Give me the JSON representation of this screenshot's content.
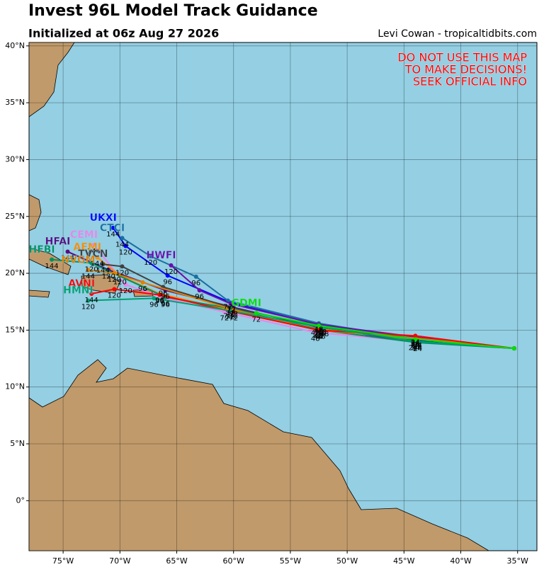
{
  "map": {
    "title": "Invest 96L Model Track Guidance",
    "subtitle": "Initialized at 06z Aug 27 2026",
    "credit": "Levi Cowan - tropicaltidbits.com",
    "warning": [
      "DO NOT USE THIS MAP",
      "TO MAKE DECISIONS!",
      "SEEK OFFICIAL INFO"
    ],
    "xlim": [
      -78,
      -33.3
    ],
    "ylim": [
      -4.4,
      40.3
    ],
    "xticks": [
      {
        "value": -75,
        "label": "75°W"
      },
      {
        "value": -70,
        "label": "70°W"
      },
      {
        "value": -65,
        "label": "65°W"
      },
      {
        "value": -60,
        "label": "60°W"
      },
      {
        "value": -55,
        "label": "55°W"
      },
      {
        "value": -50,
        "label": "50°W"
      },
      {
        "value": -45,
        "label": "45°W"
      },
      {
        "value": -40,
        "label": "40°W"
      },
      {
        "value": -35,
        "label": "35°W"
      }
    ],
    "yticks": [
      {
        "value": 0,
        "label": "0°"
      },
      {
        "value": 5,
        "label": "5°N"
      },
      {
        "value": 10,
        "label": "10°N"
      },
      {
        "value": 15,
        "label": "15°N"
      },
      {
        "value": 20,
        "label": "20°N"
      },
      {
        "value": 25,
        "label": "25°N"
      },
      {
        "value": 30,
        "label": "30°N"
      },
      {
        "value": 35,
        "label": "35°N"
      },
      {
        "value": 40,
        "label": "40°N"
      }
    ],
    "grid": true,
    "hours": [
      0,
      24,
      48,
      72,
      96,
      120,
      144
    ],
    "tracks": [
      {
        "name": "UKXI",
        "color": "#0000ff",
        "lon": [
          -35.3,
          -43.8,
          -52.2,
          -60.2,
          -65.8,
          -69.5,
          -70.6
        ],
        "lat": [
          13.4,
          14.1,
          15.4,
          17.4,
          19.8,
          22.4,
          24.0
        ]
      },
      {
        "name": "CTCI",
        "color": "#1a6fa0",
        "lon": [
          -35.3,
          -43.8,
          -52.5,
          -60.5,
          -63.3,
          -67.3,
          -69.8
        ],
        "lat": [
          13.4,
          14.2,
          15.6,
          17.6,
          19.7,
          21.5,
          23.1
        ]
      },
      {
        "name": "HWFI",
        "color": "#6a0dad",
        "lon": [
          -35.3,
          -44.0,
          -52.5,
          -60.2,
          -63.0,
          -65.5
        ],
        "lat": [
          13.4,
          14.4,
          15.5,
          17.3,
          18.5,
          20.7
        ]
      },
      {
        "name": "HFAI",
        "color": "#5b0a80",
        "lon": [
          -35.3,
          -44.2,
          -52.8,
          -60.0,
          -66.0,
          -71.0,
          -74.6
        ],
        "lat": [
          13.4,
          14.0,
          15.3,
          17.0,
          18.5,
          20.3,
          21.9
        ]
      },
      {
        "name": "CEMI",
        "color": "#ee82ee",
        "lon": [
          -35.3,
          -44.0,
          -52.8,
          -60.8,
          -66.0,
          -69.5,
          -72.3
        ],
        "lat": [
          13.4,
          14.0,
          14.8,
          16.6,
          17.8,
          19.0,
          22.5
        ]
      },
      {
        "name": "AEMI",
        "color": "#ff8c00",
        "lon": [
          -35.3,
          -44.0,
          -52.5,
          -60.5,
          -66.5,
          -70.0,
          -72.0
        ],
        "lat": [
          13.4,
          14.2,
          15.1,
          16.8,
          18.2,
          19.8,
          21.4
        ]
      },
      {
        "name": "TVCN",
        "color": "#404040",
        "lon": [
          -35.3,
          -43.8,
          -52.3,
          -60.3,
          -66.2,
          -69.8,
          -71.5
        ],
        "lat": [
          13.4,
          14.2,
          15.3,
          17.0,
          18.8,
          20.6,
          20.8
        ]
      },
      {
        "name": "HFBI",
        "color": "#009060",
        "lon": [
          -35.3,
          -43.8,
          -52.3,
          -60.2,
          -66.0,
          -72.5,
          -76.0
        ],
        "lat": [
          13.4,
          13.9,
          15.0,
          16.9,
          17.9,
          20.9,
          21.2
        ]
      },
      {
        "name": "NVGM",
        "color": "#e08000",
        "lon": [
          -35.3,
          -44.0,
          -52.6,
          -60.0,
          -68.0,
          -70.5,
          -72.8
        ],
        "lat": [
          13.4,
          14.3,
          15.0,
          16.8,
          19.2,
          20.0,
          20.3
        ]
      },
      {
        "name": "AVNI",
        "color": "#ff0000",
        "lon": [
          -35.3,
          -44.0,
          -52.5,
          -60.0,
          -66.5,
          -70.5,
          -72.5
        ],
        "lat": [
          13.4,
          14.5,
          15.0,
          16.6,
          18.1,
          18.6,
          18.2
        ]
      },
      {
        "name": "HMNI",
        "color": "#00a070",
        "lon": [
          -35.3,
          -43.8,
          -52.0,
          -60.3,
          -67.0,
          -72.8
        ],
        "lat": [
          13.4,
          14.0,
          15.2,
          16.7,
          17.8,
          17.6
        ]
      },
      {
        "name": "GDMI",
        "color": "#00e000",
        "lon": [
          -35.3,
          -44.0,
          -52.5,
          -58.0
        ],
        "lat": [
          13.4,
          14.2,
          15.4,
          16.5
        ]
      }
    ]
  }
}
